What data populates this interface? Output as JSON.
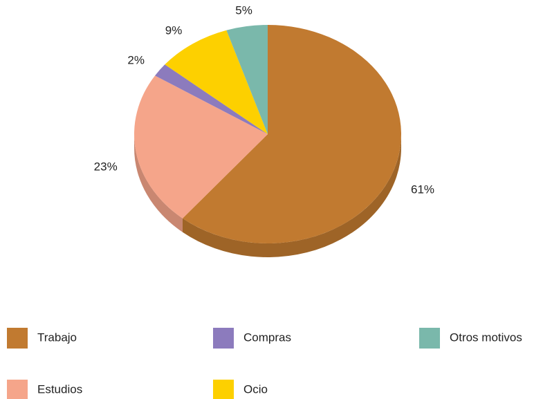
{
  "chart_data": {
    "type": "pie",
    "categories": [
      "Trabajo",
      "Estudios",
      "Compras",
      "Ocio",
      "Otros motivos"
    ],
    "values": [
      61,
      23,
      2,
      9,
      5
    ],
    "value_labels": [
      "61%",
      "23%",
      "2%",
      "9%",
      "5%"
    ],
    "colors": [
      "#c17a30",
      "#f5a58a",
      "#8c7bbd",
      "#fdd000",
      "#7ab8ab"
    ],
    "legend": "bottom"
  }
}
